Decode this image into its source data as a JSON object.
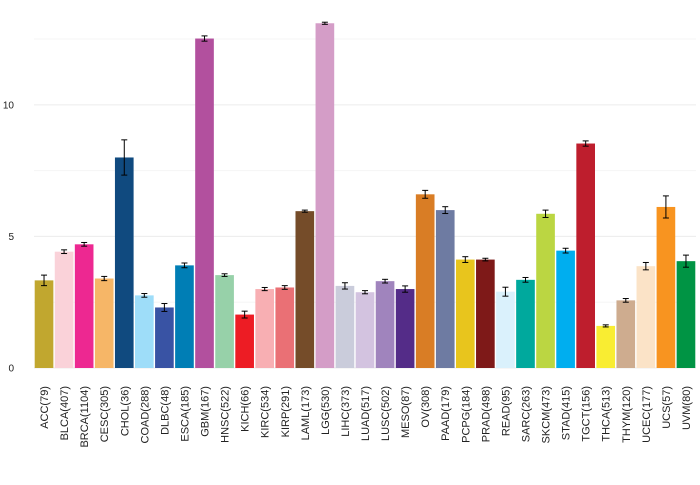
{
  "chart_data": {
    "type": "bar",
    "title": "",
    "xlabel": "",
    "ylabel": "",
    "ylim": [
      0,
      13.3
    ],
    "yticks": [
      0,
      5,
      10
    ],
    "grid": true,
    "categories": [
      "ACC(79)",
      "BLCA(407)",
      "BRCA(1104)",
      "CESC(305)",
      "CHOL(36)",
      "COAD(288)",
      "DLBC(48)",
      "ESCA(185)",
      "GBM(167)",
      "HNSC(522)",
      "KICH(66)",
      "KIRC(534)",
      "KIRP(291)",
      "LAML(173)",
      "LGG(530)",
      "LIHC(373)",
      "LUAD(517)",
      "LUSC(502)",
      "MESO(87)",
      "OV(308)",
      "PAAD(179)",
      "PCPG(184)",
      "PRAD(498)",
      "READ(95)",
      "SARC(263)",
      "SKCM(473)",
      "STAD(415)",
      "TGCT(156)",
      "THCA(513)",
      "THYM(120)",
      "UCEC(177)",
      "UCS(57)",
      "UVM(80)"
    ],
    "values": [
      3.33,
      4.42,
      4.7,
      3.4,
      8.0,
      2.76,
      2.3,
      3.9,
      12.52,
      3.53,
      2.03,
      3.0,
      3.06,
      5.96,
      13.1,
      3.12,
      2.88,
      3.3,
      3.0,
      6.6,
      6.0,
      4.12,
      4.12,
      2.9,
      3.35,
      5.86,
      4.46,
      8.53,
      1.6,
      2.57,
      3.87,
      6.12,
      4.06
    ],
    "errors": [
      0.2,
      0.07,
      0.07,
      0.08,
      0.67,
      0.07,
      0.15,
      0.09,
      0.1,
      0.05,
      0.13,
      0.06,
      0.07,
      0.04,
      0.04,
      0.12,
      0.06,
      0.07,
      0.12,
      0.15,
      0.13,
      0.11,
      0.05,
      0.17,
      0.09,
      0.14,
      0.09,
      0.1,
      0.04,
      0.07,
      0.14,
      0.42,
      0.23
    ],
    "colors": [
      "#C1A72F",
      "#FAD2D9",
      "#ED2891",
      "#F6B667",
      "#104A7F",
      "#9EDDF9",
      "#3953A4",
      "#007EB5",
      "#B2509E",
      "#97D1A9",
      "#ED1C24",
      "#F8AFB3",
      "#EA7075",
      "#754C29",
      "#D49DC7",
      "#CACCDB",
      "#D3C3E0",
      "#A084BD",
      "#542C88",
      "#D97D25",
      "#6E7BA2",
      "#E8C51D",
      "#7E1918",
      "#DAF1FC",
      "#00A99D",
      "#BBD642",
      "#00AEEF",
      "#BE1E2D",
      "#F9ED32",
      "#CEAC8F",
      "#FBE3C7",
      "#F89420",
      "#009444"
    ]
  }
}
